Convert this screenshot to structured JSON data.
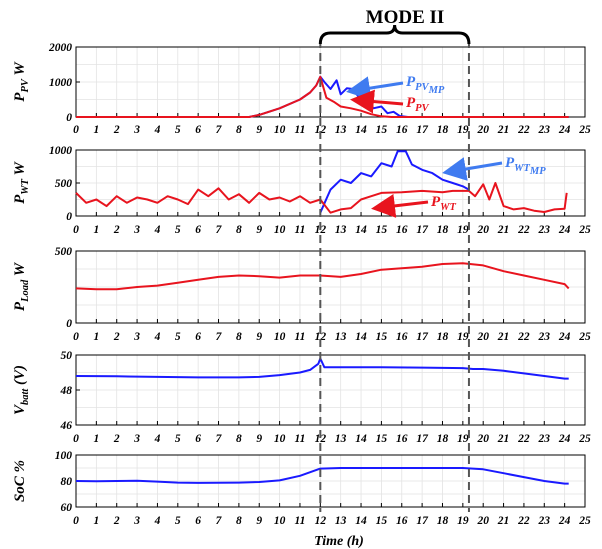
{
  "colors": {
    "blue": "#1a1aff",
    "red": "#e8141e",
    "anno_blue": "#3f7bf0",
    "grid": "#e3e3e3"
  },
  "chart_data": {
    "type": "line",
    "x_domain": [
      0,
      25
    ],
    "x_ticks": [
      "0",
      "1",
      "2",
      "3",
      "4",
      "5",
      "6",
      "7",
      "8",
      "9",
      "10",
      "11",
      "12",
      "13",
      "14",
      "15",
      "16",
      "17",
      "18",
      "19",
      "20",
      "21",
      "22",
      "23",
      "24",
      "25"
    ],
    "xlabel": "Time (h)",
    "mode_label": "MODE II",
    "mode_range_h": [
      12,
      19.3
    ],
    "panels": [
      {
        "id": "pv",
        "ylabel": {
          "main": "P",
          "sub": "PV",
          "unit": " W"
        },
        "ylim": [
          0,
          2000
        ],
        "yticks": [
          "0",
          "1000",
          "2000"
        ],
        "series": [
          {
            "name": "P_PV_MP",
            "label": {
              "main": "P",
              "sub": "PV",
              "sub2": "MP"
            },
            "color": "blue",
            "x": [
              0,
              8.5,
              9,
              10,
              11,
              11.5,
              11.8,
              12,
              12.2,
              12.5,
              12.8,
              13,
              13.3,
              13.6,
              14,
              14.3,
              14.6,
              15,
              15.3,
              15.6,
              15.9,
              16.3,
              24.2
            ],
            "y": [
              0,
              0,
              60,
              250,
              500,
              700,
              900,
              1150,
              1000,
              800,
              1050,
              650,
              820,
              800,
              480,
              520,
              250,
              300,
              110,
              150,
              30,
              0,
              0
            ]
          },
          {
            "name": "P_PV",
            "label": {
              "main": "P",
              "sub": "PV"
            },
            "color": "red",
            "x": [
              0,
              8.5,
              9,
              10,
              11,
              11.5,
              11.8,
              12,
              12.3,
              12.7,
              13,
              13.5,
              14,
              14.5,
              15,
              15.5,
              16,
              24.2
            ],
            "y": [
              0,
              0,
              60,
              250,
              500,
              700,
              900,
              1150,
              550,
              420,
              300,
              250,
              180,
              80,
              20,
              0,
              0,
              0
            ]
          }
        ]
      },
      {
        "id": "wt",
        "ylabel": {
          "main": "P",
          "sub": "WT",
          "unit": " W"
        },
        "ylim": [
          0,
          1000
        ],
        "yticks": [
          "0",
          "500",
          "1000"
        ],
        "series": [
          {
            "name": "P_WT_MP",
            "label": {
              "main": "P",
              "sub": "WT",
              "sub2": "MP"
            },
            "color": "blue",
            "x": [
              12,
              12.5,
              13,
              13.5,
              14,
              14.5,
              15,
              15.5,
              15.8,
              16.2,
              16.5,
              17,
              17.5,
              18,
              18.5,
              19,
              19.3
            ],
            "y": [
              50,
              400,
              550,
              500,
              650,
              600,
              800,
              750,
              980,
              980,
              780,
              700,
              650,
              550,
              500,
              450,
              400
            ]
          },
          {
            "name": "P_WT",
            "label": {
              "main": "P",
              "sub": "WT"
            },
            "color": "red",
            "x": [
              0,
              0.5,
              1,
              1.5,
              2,
              2.5,
              3,
              3.5,
              4,
              4.5,
              5,
              5.5,
              6,
              6.5,
              7,
              7.5,
              8,
              8.5,
              9,
              9.5,
              10,
              10.5,
              11,
              11.5,
              12,
              12.5,
              13,
              13.5,
              14,
              14.5,
              15,
              16,
              17,
              18,
              18.5,
              19,
              19.3,
              19.6,
              20,
              20.3,
              20.6,
              21,
              21.5,
              22,
              22.5,
              23,
              23.5,
              24,
              24.1
            ],
            "y": [
              350,
              200,
              250,
              150,
              300,
              200,
              280,
              250,
              200,
              300,
              250,
              180,
              400,
              300,
              420,
              250,
              330,
              200,
              350,
              250,
              280,
              220,
              300,
              200,
              250,
              50,
              100,
              120,
              250,
              300,
              350,
              360,
              380,
              360,
              380,
              380,
              380,
              300,
              480,
              250,
              500,
              150,
              100,
              120,
              80,
              60,
              100,
              110,
              350
            ]
          }
        ]
      },
      {
        "id": "load",
        "ylabel": {
          "main": "P",
          "sub": "Load",
          "unit": " W"
        },
        "ylim": [
          0,
          500
        ],
        "yticks": [
          "0",
          "500"
        ],
        "series": [
          {
            "name": "P_Load",
            "color": "red",
            "x": [
              0,
              1,
              2,
              3,
              4,
              5,
              6,
              7,
              8,
              9,
              10,
              11,
              12,
              13,
              14,
              15,
              16,
              17,
              18,
              19,
              20,
              21,
              22,
              23,
              24,
              24.2
            ],
            "y": [
              240,
              235,
              235,
              250,
              260,
              280,
              300,
              320,
              330,
              325,
              315,
              330,
              330,
              320,
              340,
              370,
              380,
              390,
              410,
              415,
              400,
              360,
              330,
              300,
              270,
              240
            ]
          }
        ]
      },
      {
        "id": "vbatt",
        "ylabel": {
          "main": "V",
          "sub": "batt",
          "unit": " (V)"
        },
        "ylim": [
          46,
          50
        ],
        "yticks": [
          "46",
          "48",
          "50"
        ],
        "series": [
          {
            "name": "V_batt",
            "color": "blue",
            "x": [
              0,
              2,
              4,
              6,
              8,
              9,
              10,
              11,
              11.5,
              11.9,
              12,
              12.2,
              13,
              15,
              17,
              19,
              19.5,
              20,
              21,
              22,
              23,
              24,
              24.2
            ],
            "y": [
              48.8,
              48.78,
              48.75,
              48.72,
              48.72,
              48.75,
              48.85,
              49.0,
              49.15,
              49.5,
              49.8,
              49.3,
              49.3,
              49.3,
              49.28,
              49.25,
              49.2,
              49.2,
              49.1,
              48.95,
              48.8,
              48.65,
              48.65
            ]
          }
        ]
      },
      {
        "id": "soc",
        "ylabel": {
          "main": "SoC %",
          "sub": "",
          "unit": ""
        },
        "ylim": [
          60,
          100
        ],
        "yticks": [
          "60",
          "80",
          "100"
        ],
        "series": [
          {
            "name": "SoC",
            "color": "blue",
            "x": [
              0,
              1,
              2,
              3,
              4,
              5,
              6,
              7,
              8,
              9,
              10,
              11,
              12,
              13,
              15,
              17,
              19,
              19.5,
              20,
              21,
              22,
              23,
              24,
              24.2
            ],
            "y": [
              80,
              79.8,
              80,
              80.2,
              79.5,
              78.8,
              78.5,
              78.6,
              78.8,
              79.2,
              80.5,
              84,
              89.5,
              90,
              90,
              90,
              90,
              89.5,
              89,
              86,
              83,
              80,
              78,
              78
            ]
          }
        ]
      }
    ]
  }
}
